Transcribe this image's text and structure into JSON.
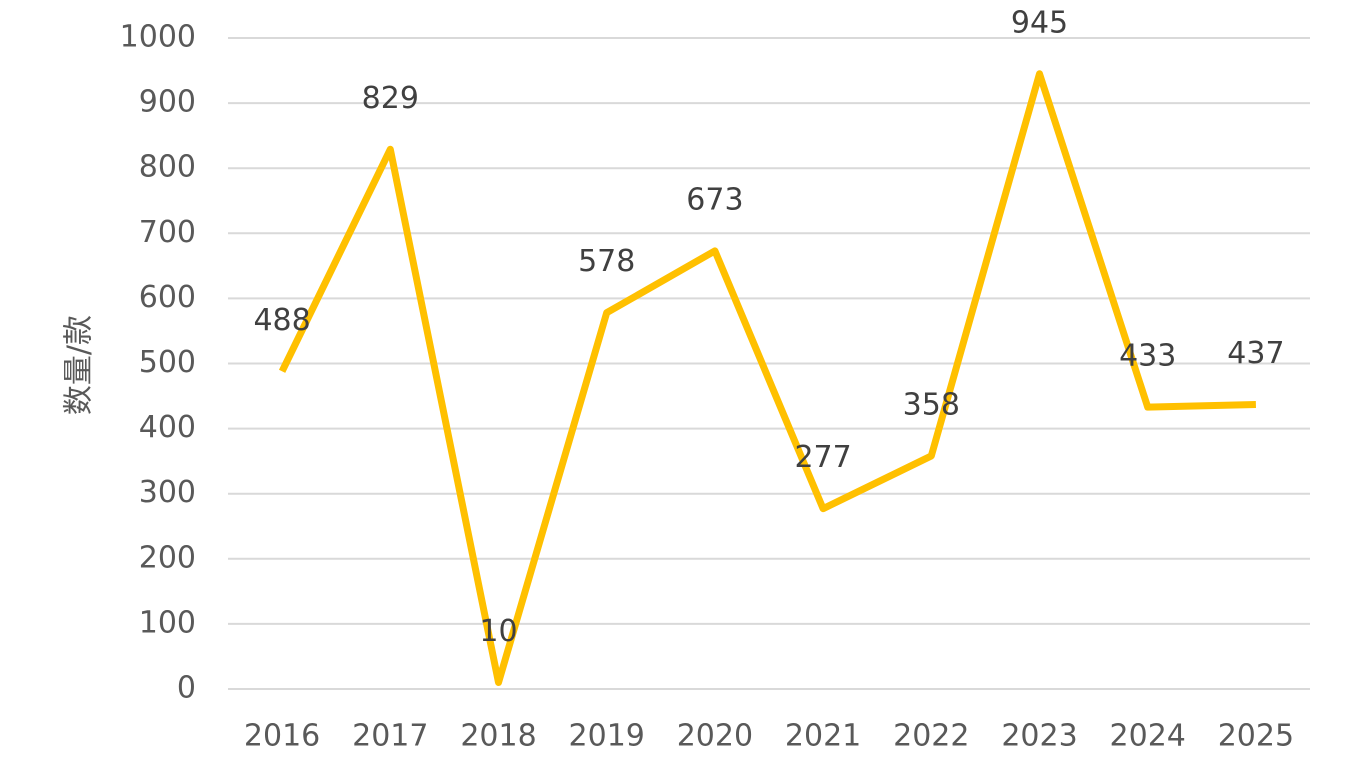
{
  "chart_data": {
    "type": "line",
    "y_label": "数量/款",
    "categories": [
      "2016",
      "2017",
      "2018",
      "2019",
      "2020",
      "2021",
      "2022",
      "2023",
      "2024",
      "2025"
    ],
    "values": [
      488,
      829,
      10,
      578,
      673,
      277,
      358,
      945,
      433,
      437
    ],
    "color": "#FFC000",
    "ylim": [
      0,
      1000
    ],
    "yticks": [
      0,
      100,
      200,
      300,
      400,
      500,
      600,
      700,
      800,
      900,
      1000
    ],
    "grid": true
  }
}
